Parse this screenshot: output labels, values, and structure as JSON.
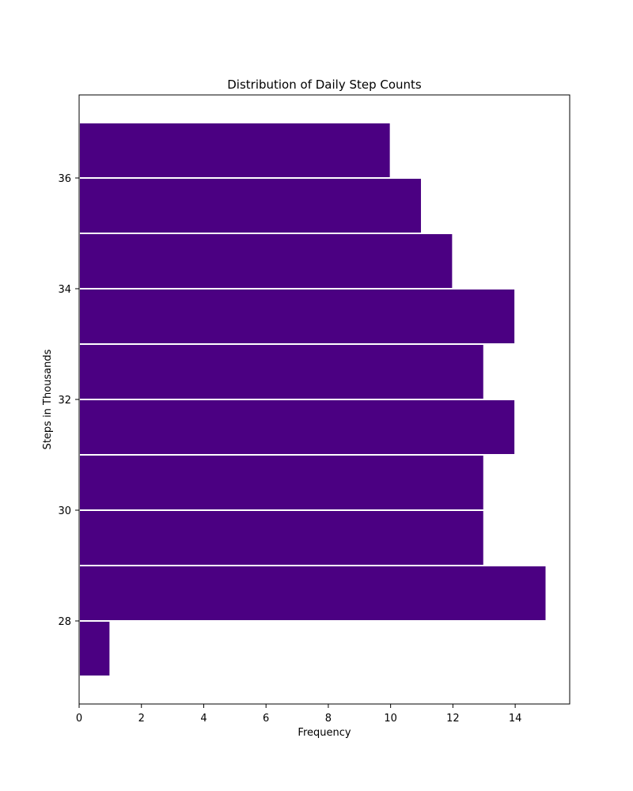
{
  "chart_data": {
    "type": "bar",
    "orientation": "horizontal",
    "title": "Distribution of Daily Step Counts",
    "xlabel": "Frequency",
    "ylabel": "Steps in Thousands",
    "bin_edges": [
      27,
      28,
      29,
      30,
      31,
      32,
      33,
      34,
      35,
      36,
      37
    ],
    "values": [
      1,
      15,
      13,
      13,
      14,
      13,
      14,
      12,
      11,
      10
    ],
    "xlim": [
      0,
      15.75
    ],
    "ylim": [
      26.5,
      37.5
    ],
    "xticks": [
      0,
      2,
      4,
      6,
      8,
      10,
      12,
      14
    ],
    "yticks": [
      28,
      30,
      32,
      34,
      36
    ],
    "bar_color": "#4b0082",
    "edge_color": "#ffffff",
    "grid": false,
    "legend": "none"
  }
}
